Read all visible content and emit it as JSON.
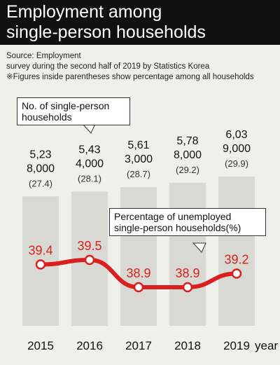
{
  "header": {
    "title_line1": "Employment among",
    "title_line2": "single-person households"
  },
  "notes": {
    "source_line1": "Source: Employment",
    "source_line2": "survey during the second half of 2019 by Statistics Korea",
    "footnote": "※Figures inside parentheses show percentage among all households"
  },
  "callouts": {
    "households": "No. of single-person households",
    "unemployed": "Percentage of unemployed single-person households(%)"
  },
  "colors": {
    "bar": "#d9d9d3",
    "line": "#d91f1f",
    "background": "#efefec",
    "header": "#111111"
  },
  "chart_data": {
    "type": "bar",
    "categories": [
      "2015",
      "2016",
      "2017",
      "2018",
      "2019"
    ],
    "x_unit_label": "year",
    "series": [
      {
        "values": [
          5238000,
          5434000,
          5613000,
          5788000,
          6039000
        ],
        "labels_line1": [
          "5,23",
          "5,43",
          "5,61",
          "5,78",
          "6,03"
        ],
        "labels_line2": [
          "8,000",
          "4,000",
          "3,000",
          "8,000",
          "9,000"
        ],
        "share_labels": [
          "(27.4)",
          "(28.1)",
          "(28.7)",
          "(29.2)",
          "(29.9)"
        ],
        "share_values": [
          27.4,
          28.1,
          28.7,
          29.2,
          29.9
        ]
      },
      {
        "type": "line",
        "values": [
          39.4,
          39.5,
          38.9,
          38.9,
          39.2
        ],
        "labels": [
          "39.4",
          "39.5",
          "38.9",
          "38.9",
          "39.2"
        ]
      }
    ]
  }
}
